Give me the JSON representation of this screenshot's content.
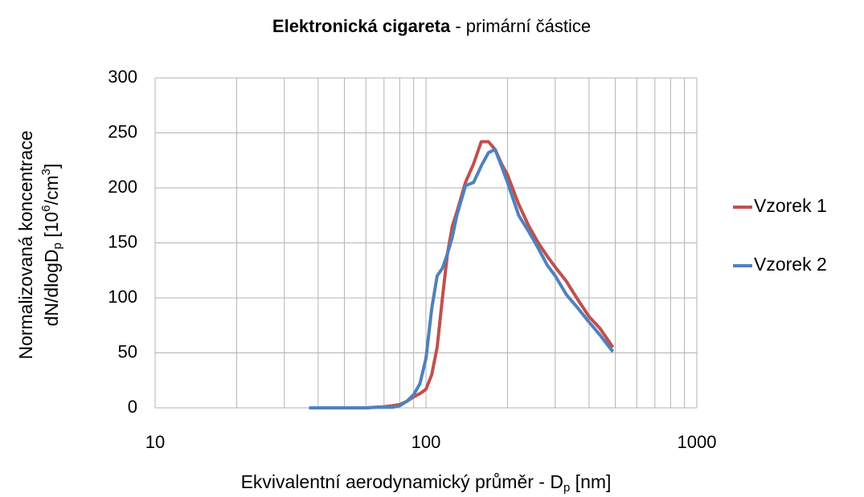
{
  "chart_data": {
    "type": "line",
    "title": [
      "Elektronická cigareta",
      " - primární částice"
    ],
    "xlabel": [
      "Ekvivalentní aerodynamický průměr - D",
      "p",
      " [nm]"
    ],
    "ylabel": [
      "Normalizovaná koncentrace",
      "dN/dlogD",
      "p",
      " [10",
      "6",
      "/cm",
      "3",
      "]"
    ],
    "x": [
      37,
      40,
      45,
      50,
      55,
      60,
      65,
      70,
      75,
      80,
      85,
      90,
      95,
      100,
      105,
      110,
      115,
      120,
      125,
      130,
      140,
      150,
      160,
      170,
      180,
      190,
      200,
      220,
      240,
      260,
      280,
      300,
      330,
      360,
      400,
      440,
      490
    ],
    "series": [
      {
        "name": "Vzorek 1",
        "color": "#c0504d",
        "values": [
          0,
          0,
          0,
          0,
          0,
          0,
          0.5,
          1,
          2,
          3,
          6,
          10,
          13,
          17,
          30,
          55,
          100,
          140,
          165,
          178,
          205,
          222,
          242,
          242,
          235,
          222,
          212,
          185,
          165,
          150,
          138,
          128,
          115,
          100,
          83,
          72,
          55
        ]
      },
      {
        "name": "Vzorek 2",
        "color": "#4f81bd",
        "values": [
          0,
          0,
          0,
          0,
          0,
          0,
          0.5,
          0.5,
          0.5,
          2,
          6,
          12,
          22,
          45,
          90,
          120,
          127,
          140,
          155,
          175,
          202,
          205,
          220,
          232,
          235,
          220,
          205,
          175,
          160,
          145,
          130,
          120,
          103,
          92,
          78,
          66,
          51
        ]
      }
    ],
    "xscale": "log",
    "xlim": [
      10,
      1000
    ],
    "xticks": [
      10,
      100,
      1000
    ],
    "xgrid": [
      20,
      30,
      40,
      50,
      60,
      70,
      80,
      90,
      200,
      300,
      400,
      500,
      600,
      700,
      800,
      900
    ],
    "ylim": [
      0,
      300
    ],
    "yticks": [
      0,
      50,
      100,
      150,
      200,
      250,
      300
    ],
    "grid": true,
    "legend": "right"
  }
}
